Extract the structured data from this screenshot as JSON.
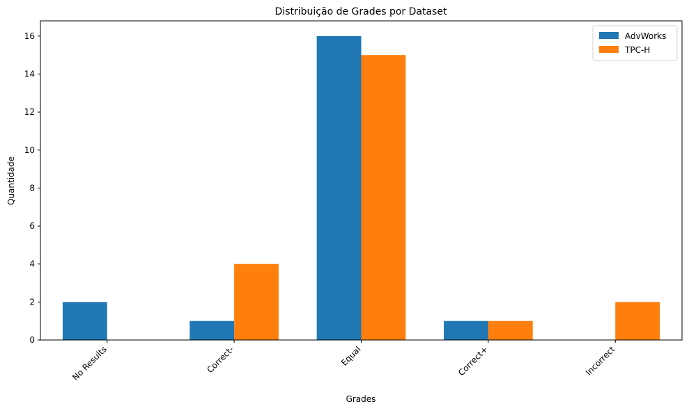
{
  "chart_data": {
    "type": "bar",
    "title": "Distribuição de Grades por Dataset",
    "xlabel": "Grades",
    "ylabel": "Quantidade",
    "categories": [
      "No Results",
      "Correct-",
      "Equal",
      "Correct+",
      "Incorrect"
    ],
    "series": [
      {
        "name": "AdvWorks",
        "color": "#1f77b4",
        "values": [
          2,
          1,
          16,
          1,
          0
        ]
      },
      {
        "name": "TPC-H",
        "color": "#ff7f0e",
        "values": [
          0,
          4,
          15,
          1,
          2
        ]
      }
    ],
    "ylim": [
      0,
      16.8
    ],
    "yticks": [
      "0",
      "2",
      "4",
      "6",
      "8",
      "10",
      "12",
      "14",
      "16"
    ],
    "xtick_rotation_deg": 45,
    "grid": false,
    "legend": "top-right"
  }
}
